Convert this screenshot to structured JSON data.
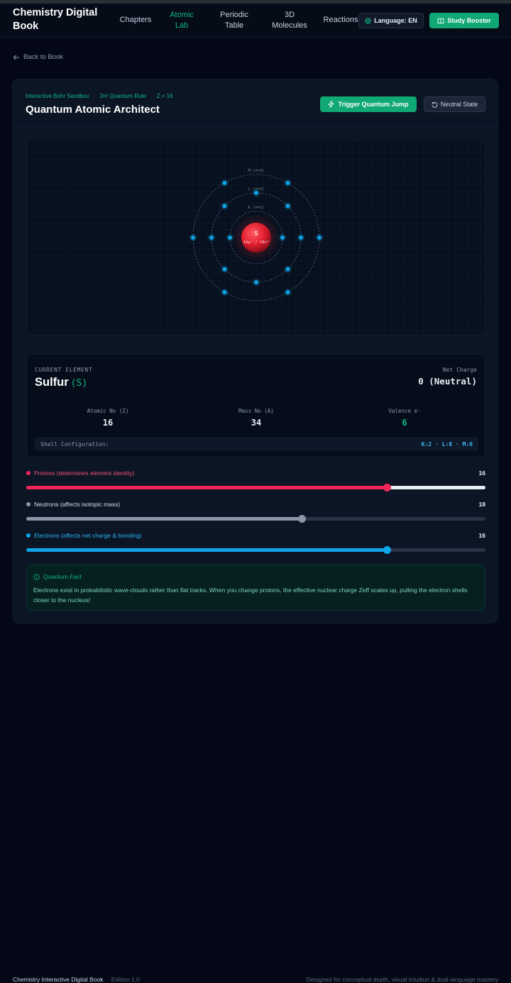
{
  "header": {
    "brand": "Chemistry Digital Book",
    "nav": [
      {
        "label": "Chapters",
        "active": false
      },
      {
        "label": "Atomic Lab",
        "active": true
      },
      {
        "label": "Periodic Table",
        "active": false
      },
      {
        "label": "3D Molecules",
        "active": false
      },
      {
        "label": "Reactions",
        "active": false
      }
    ],
    "language_label": "Language: EN",
    "study_label": "Study Booster"
  },
  "back_label": "Back to Book",
  "lab": {
    "breadcrumb": [
      "Interactive Bohr Sandbox",
      "2n² Quantum Rule",
      "Z = 16"
    ],
    "title": "Quantum Atomic Architect",
    "trigger_label": "Trigger Quantum Jump",
    "neutral_label": "Neutral State",
    "atom": {
      "nucleus_symbol": "S",
      "nucleus_sub": "16p⁺ / 18n⁰",
      "shells": [
        {
          "label": "K (n=1)",
          "electrons": 2
        },
        {
          "label": "L (n=2)",
          "electrons": 8
        },
        {
          "label": "M (n=3)",
          "electrons": 6
        }
      ]
    }
  },
  "element": {
    "current_label": "CURRENT ELEMENT",
    "name": "Sulfur",
    "symbol": "(S)",
    "net_charge_label": "Net Charge",
    "net_charge_value": "0 (Neutral)",
    "atomic_no_label": "Atomic No (Z)",
    "atomic_no": "16",
    "mass_no_label": "Mass No (A)",
    "mass_no": "34",
    "valence_label": "Valence e⁻",
    "valence": "6",
    "shell_config_label": "Shell Configuration:",
    "shell_config": "K:2 · L:8 · M:6"
  },
  "sliders": [
    {
      "label": "Protons (determines element identity)",
      "value": 16,
      "fraction": 0.785,
      "color": "#f0265a",
      "label_color": "#f0507a",
      "track_color": "#e8edf3"
    },
    {
      "label": "Neutrons (affects isotopic mass)",
      "value": 18,
      "fraction": 0.6,
      "color": "#8b97a8",
      "label_color": "#d7dee7",
      "track_color": "#2a3446"
    },
    {
      "label": "Electrons (affects net charge & bonding)",
      "value": 16,
      "fraction": 0.785,
      "color": "#0ea5e9",
      "label_color": "#2bb3f0",
      "track_color": "#2a3446"
    }
  ],
  "fact": {
    "title": "Quantum Fact",
    "text": "Electrons exist in probabilistic wave-clouds rather than flat tracks. When you change protons, the effective nuclear charge Zeff scales up, pulling the electron shells closer to the nucleus!"
  },
  "footer": {
    "left": "Chemistry Interactive Digital Book",
    "edition": "· Edition 1.0",
    "right": "Designed for conceptual depth, visual intuition & dual-language mastery"
  },
  "colors": {
    "accent": "#10b981",
    "electron": "#0ea5e9",
    "nucleus": "#e11d2e"
  }
}
